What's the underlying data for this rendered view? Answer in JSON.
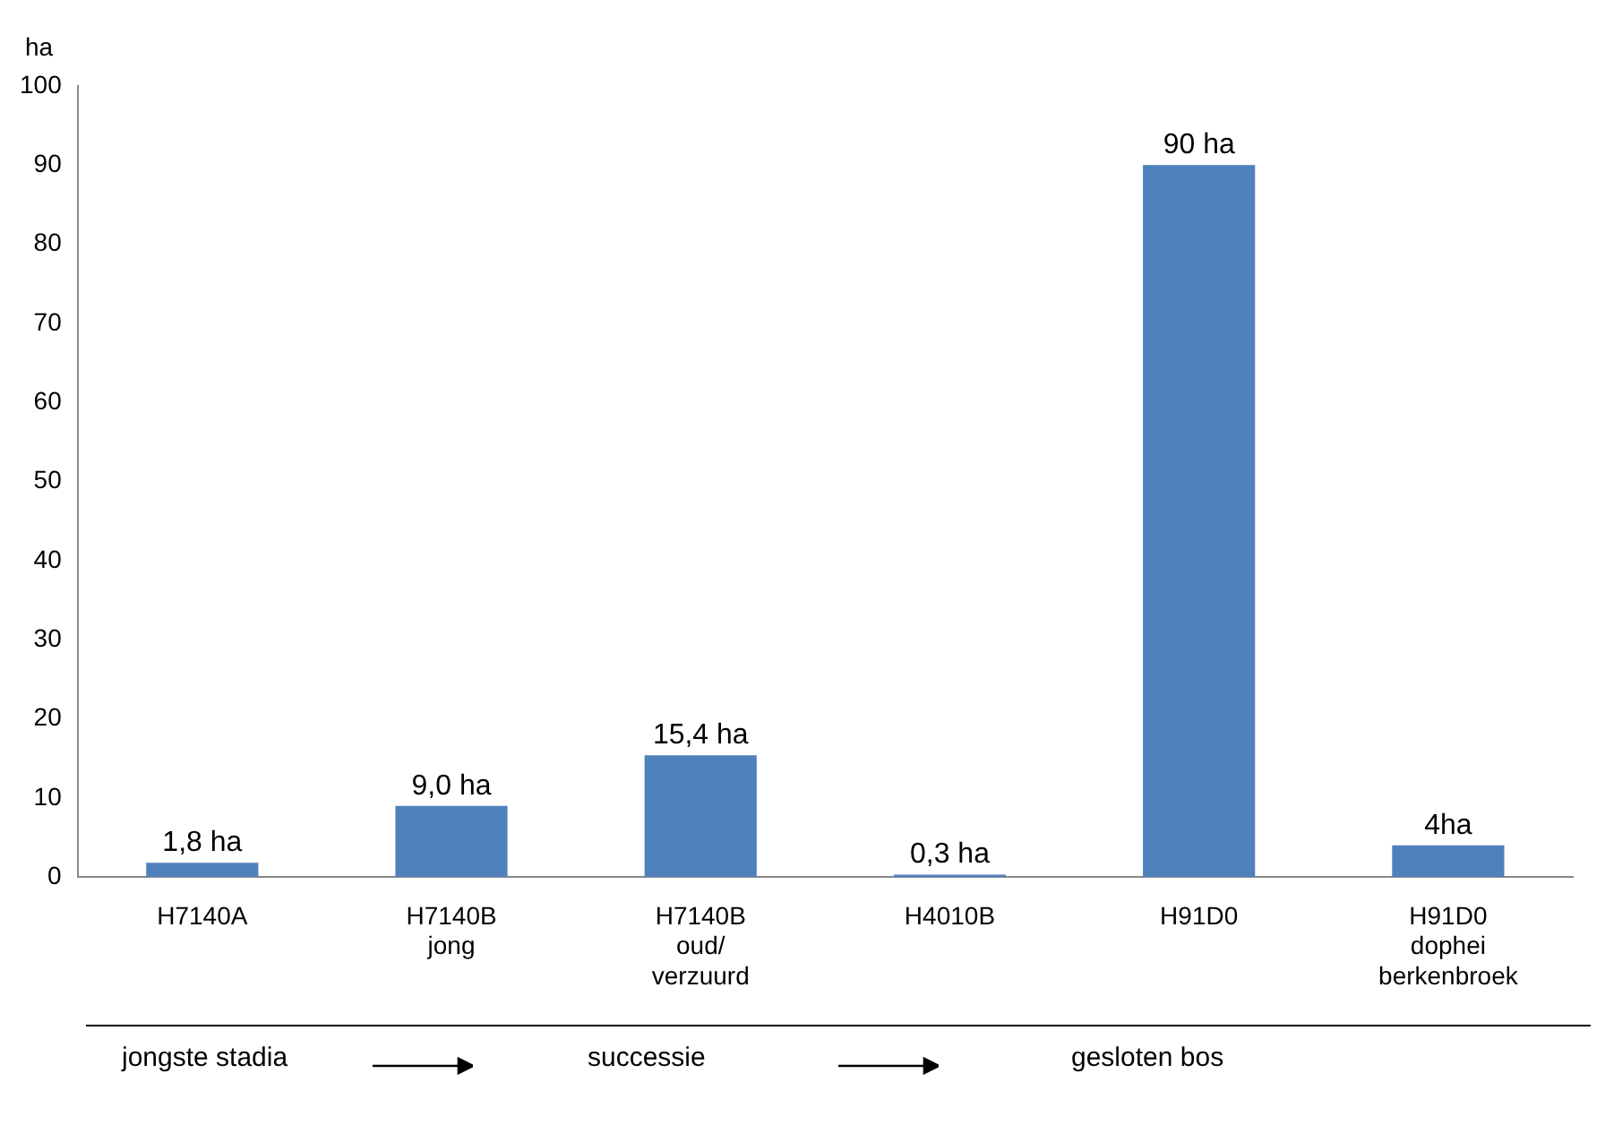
{
  "chart_data": {
    "type": "bar",
    "ylabel": "ha",
    "categories": [
      "H7140A",
      "H7140B\njong",
      "H7140B\noud/\nverzuurd",
      "H4010B",
      "H91D0",
      "H91D0\ndophei\nberkenbroek"
    ],
    "values": [
      1.8,
      9.0,
      15.4,
      0.3,
      90,
      4
    ],
    "value_labels": [
      "1,8 ha",
      "9,0 ha",
      "15,4 ha",
      "0,3 ha",
      "90 ha",
      "4ha"
    ],
    "color": "#4f81bd",
    "ylim": [
      0,
      100
    ],
    "yticks": [
      0,
      10,
      20,
      30,
      40,
      50,
      60,
      70,
      80,
      90,
      100
    ],
    "grid": false,
    "legend": false,
    "annotations": [
      "jongste stadia",
      "successie",
      "gesloten bos"
    ]
  }
}
